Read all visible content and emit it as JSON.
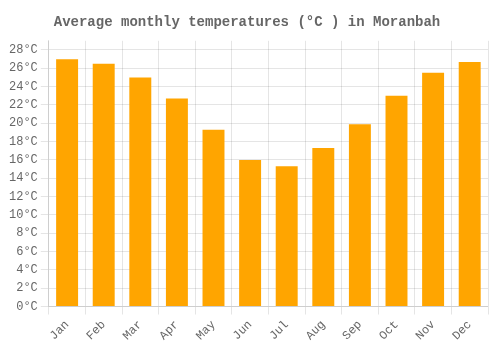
{
  "chart_data": {
    "type": "bar",
    "title": "Average monthly temperatures (°C ) in Moranbah",
    "categories": [
      "Jan",
      "Feb",
      "Mar",
      "Apr",
      "May",
      "Jun",
      "Jul",
      "Aug",
      "Sep",
      "Oct",
      "Nov",
      "Dec"
    ],
    "values": [
      27.0,
      26.5,
      25.0,
      22.7,
      19.3,
      16.0,
      15.3,
      17.3,
      19.9,
      23.0,
      25.5,
      26.7
    ],
    "color": "#FFA500",
    "ylim": [
      0,
      29
    ],
    "yticks": [
      {
        "value": 0,
        "label": "0°C"
      },
      {
        "value": 2,
        "label": "2°C"
      },
      {
        "value": 4,
        "label": "4°C"
      },
      {
        "value": 6,
        "label": "6°C"
      },
      {
        "value": 8,
        "label": "8°C"
      },
      {
        "value": 10,
        "label": "10°C"
      },
      {
        "value": 12,
        "label": "12°C"
      },
      {
        "value": 14,
        "label": "14°C"
      },
      {
        "value": 16,
        "label": "16°C"
      },
      {
        "value": 18,
        "label": "18°C"
      },
      {
        "value": 20,
        "label": "20°C"
      },
      {
        "value": 22,
        "label": "22°C"
      },
      {
        "value": 24,
        "label": "24°C"
      },
      {
        "value": 26,
        "label": "26°C"
      },
      {
        "value": 28,
        "label": "28°C"
      }
    ],
    "grid": true
  }
}
